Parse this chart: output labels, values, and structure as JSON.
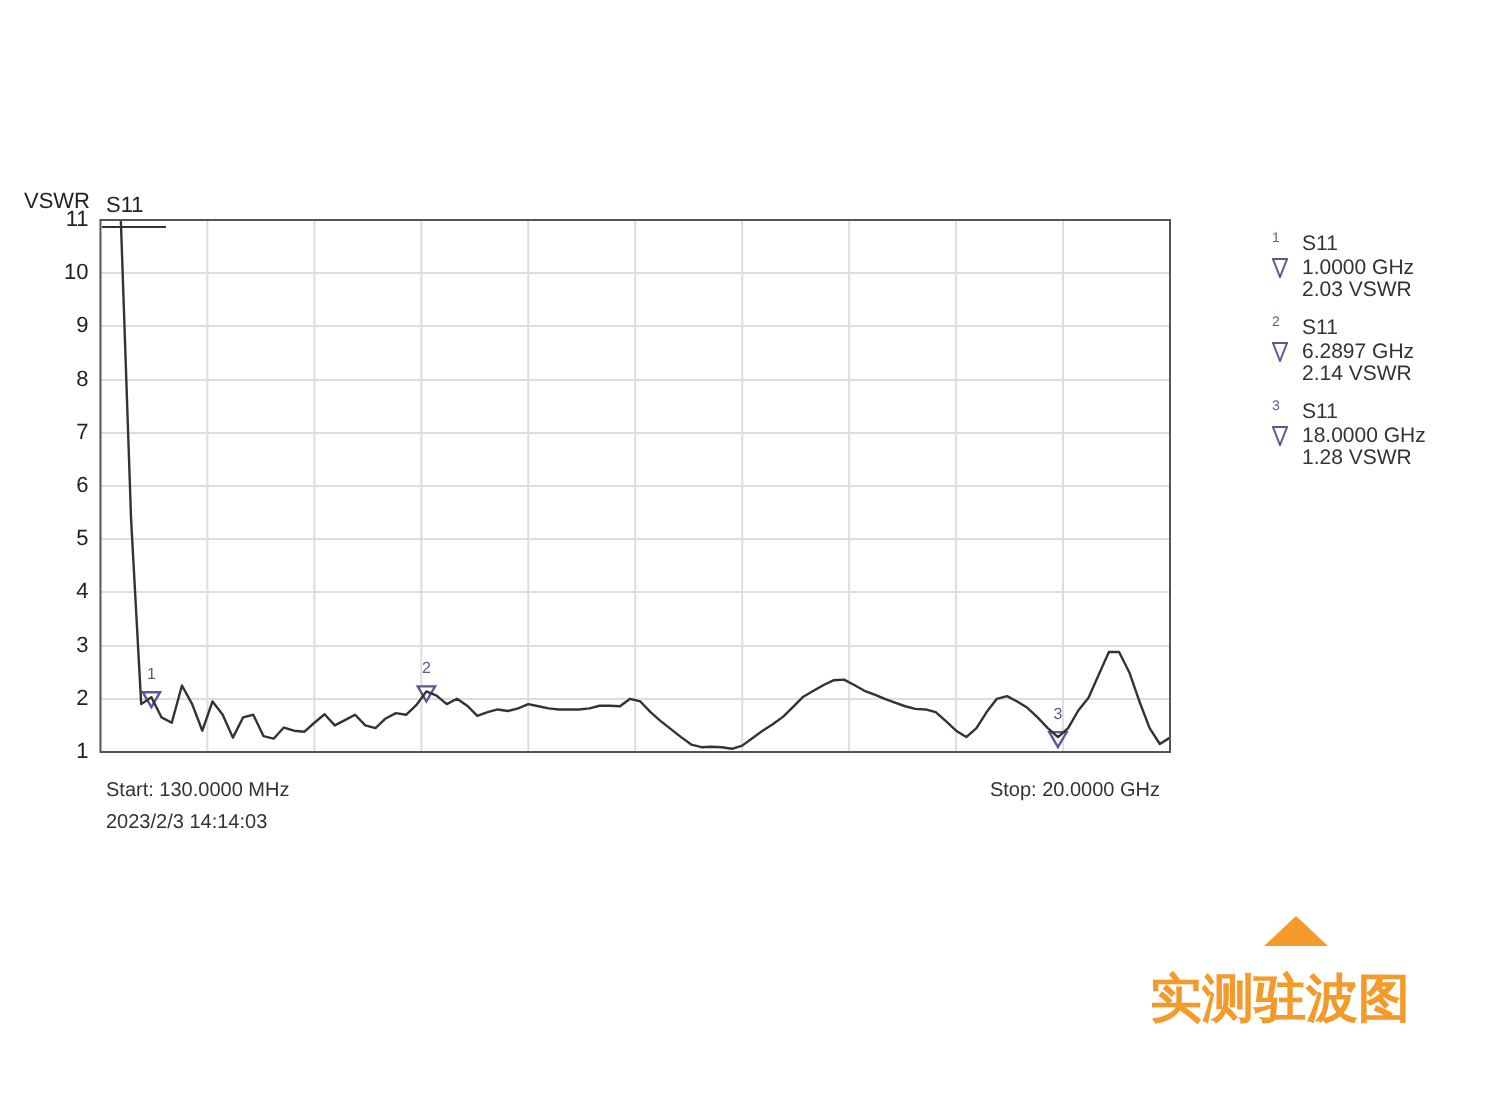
{
  "chart_data": {
    "type": "line",
    "ylabel": "VSWR",
    "grid": true,
    "tick_labels": "y",
    "line_style": "solid",
    "categories": [
      null,
      null,
      null,
      null,
      null,
      null,
      null,
      null,
      null,
      null,
      null,
      null,
      null,
      null,
      null,
      null,
      null,
      null,
      null,
      null,
      null,
      null,
      null,
      null,
      null,
      null,
      null,
      null,
      null,
      null,
      null,
      null,
      null,
      null,
      null,
      null,
      null,
      null,
      null,
      null,
      null,
      null,
      null,
      null,
      null,
      null,
      null,
      null,
      null,
      null,
      null,
      null,
      null,
      null,
      null,
      null,
      null,
      null,
      null,
      null,
      null,
      null,
      null,
      null,
      null,
      null,
      null,
      null,
      null,
      null,
      null,
      null,
      null,
      null,
      null,
      null,
      null,
      null,
      null,
      null,
      null,
      null,
      null,
      null,
      null,
      null,
      null,
      null,
      null,
      null,
      null,
      null,
      null,
      null,
      null,
      null,
      null,
      null,
      null,
      null,
      null,
      null,
      null,
      null,
      null,
      null
    ],
    "ylim": [
      1,
      11
    ],
    "yticks": [
      1,
      2,
      3,
      4,
      5,
      6,
      7,
      8,
      9,
      10,
      11
    ],
    "series": [
      {
        "name": "S11",
        "color": "#333333",
        "values": [
          null,
          null,
          11,
          5.4,
          1.9,
          2.03,
          1.65,
          1.55,
          2.25,
          1.9,
          1.4,
          1.95,
          1.7,
          1.27,
          1.65,
          1.7,
          1.3,
          1.25,
          1.46,
          1.4,
          1.38,
          1.55,
          1.71,
          1.5,
          1.6,
          1.7,
          1.5,
          1.45,
          1.63,
          1.73,
          1.7,
          1.88,
          2.14,
          2.06,
          1.9,
          2.0,
          1.87,
          1.68,
          1.75,
          1.8,
          1.77,
          1.82,
          1.9,
          1.86,
          1.82,
          1.8,
          1.8,
          1.8,
          1.82,
          1.87,
          1.87,
          1.86,
          2.0,
          1.95,
          1.75,
          1.58,
          1.43,
          1.28,
          1.14,
          1.09,
          1.1,
          1.09,
          1.06,
          1.12,
          1.26,
          1.4,
          1.52,
          1.66,
          1.85,
          2.04,
          2.15,
          2.26,
          2.35,
          2.36,
          2.26,
          2.15,
          2.08,
          2.0,
          1.93,
          1.86,
          1.81,
          1.8,
          1.75,
          1.58,
          1.4,
          1.28,
          1.45,
          1.75,
          2.0,
          2.05,
          1.95,
          1.83,
          1.65,
          1.45,
          1.28,
          1.45,
          1.78,
          2.02,
          2.45,
          2.88,
          2.88,
          2.5,
          1.95,
          1.45,
          1.15,
          1.27
        ],
        "marker": "none"
      },
      {
        "type": "scatter",
        "color": "#5a5a9a",
        "marker": "triangle",
        "values": [
          null,
          null,
          null,
          null,
          null,
          2.03,
          null,
          null,
          null,
          null,
          null,
          null,
          null,
          null,
          null,
          null,
          null,
          null,
          null,
          null,
          null,
          null,
          null,
          null,
          null,
          null,
          null,
          null,
          null,
          null,
          null,
          null,
          2.14,
          null,
          null,
          null,
          null,
          null,
          null,
          null,
          null,
          null,
          null,
          null,
          null,
          null,
          null,
          null,
          null,
          null,
          null,
          null,
          null,
          null,
          null,
          null,
          null,
          null,
          null,
          null,
          null,
          null,
          null,
          null,
          null,
          null,
          null,
          null,
          null,
          null,
          null,
          null,
          null,
          null,
          null,
          null,
          null,
          null,
          null,
          null,
          null,
          null,
          null,
          null,
          null,
          null,
          null,
          null,
          null,
          null,
          null,
          null,
          null,
          null,
          1.28,
          null,
          null,
          null,
          null,
          null,
          null,
          null,
          null,
          null,
          null,
          null
        ]
      }
    ],
    "annotations": [
      "Start: 130.0000 MHz",
      "2023/2/3 14:14:03",
      "Stop: 20.0000 GHz",
      "实测驻波图",
      "1",
      "S11",
      "1.0000 GHz",
      "2.03 VSWR",
      "2",
      "S11",
      "6.2897 GHz",
      "2.14 VSWR",
      "3",
      "S11",
      "18.0000 GHz",
      "1.28 VSWR",
      "1",
      "2",
      "3"
    ]
  }
}
